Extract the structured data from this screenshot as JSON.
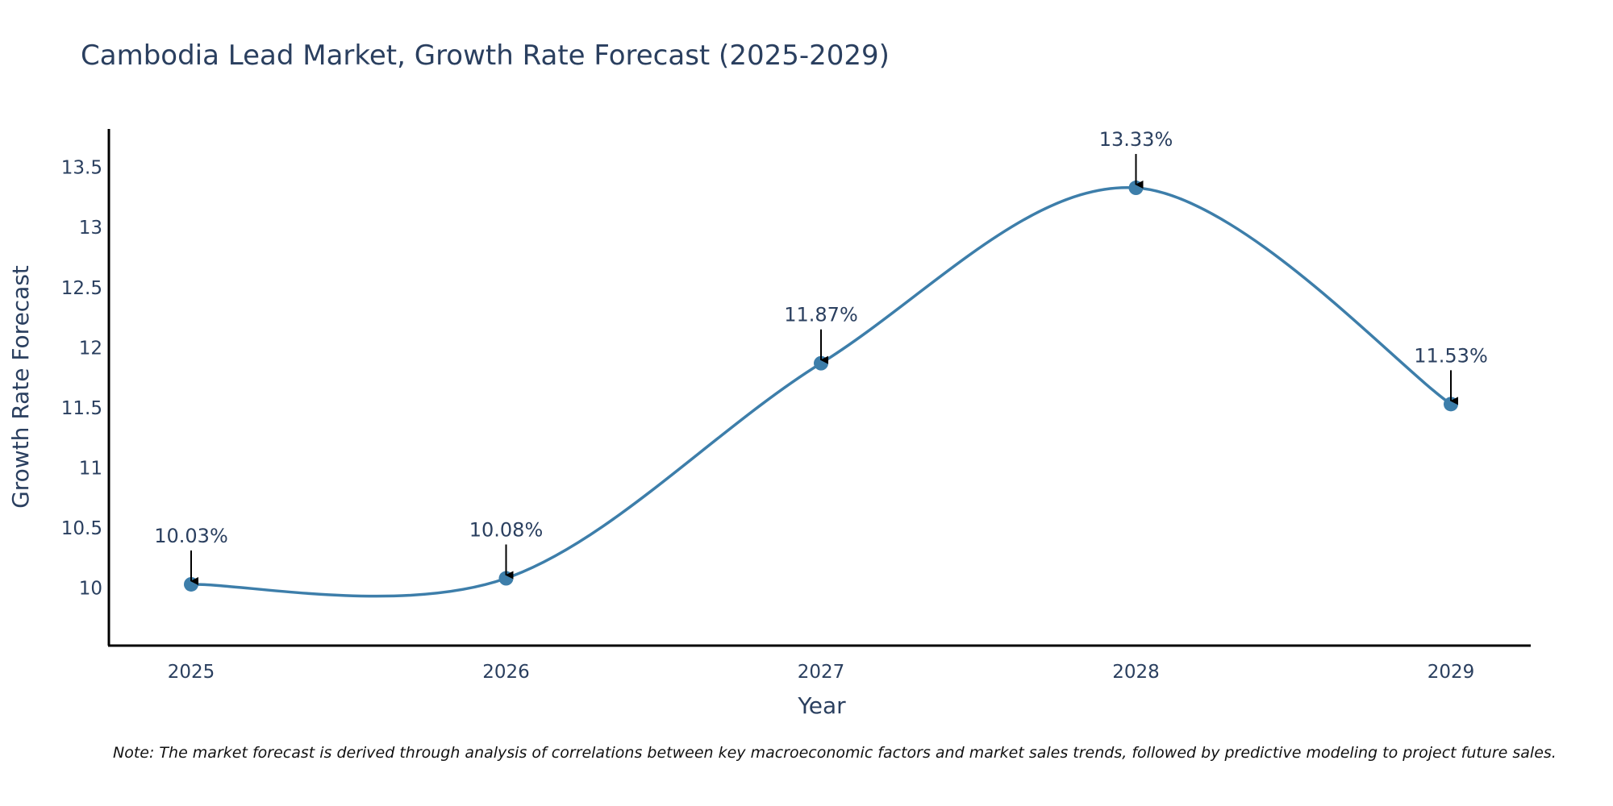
{
  "chart_data": {
    "type": "line",
    "title": "Cambodia Lead Market, Growth Rate Forecast (2025-2029)",
    "xlabel": "Year",
    "ylabel": "Growth Rate Forecast",
    "categories": [
      "2025",
      "2026",
      "2027",
      "2028",
      "2029"
    ],
    "values": [
      10.03,
      10.08,
      11.87,
      13.33,
      11.53
    ],
    "data_labels": [
      "10.03%",
      "10.08%",
      "11.87%",
      "13.33%",
      "11.53%"
    ],
    "ylim": [
      9.52,
      13.82
    ],
    "yticks": [
      10,
      10.5,
      11,
      11.5,
      12,
      12.5,
      13,
      13.5
    ],
    "ytick_labels": [
      "10",
      "10.5",
      "11",
      "11.5",
      "12",
      "12.5",
      "13",
      "13.5"
    ],
    "grid": false,
    "legend": "none",
    "line_color": "#3d7eaa",
    "marker_color": "#3d7eaa",
    "note": "Note: The market forecast is derived through analysis of correlations between key macroeconomic factors and market sales trends, followed by predictive modeling to project future sales."
  }
}
